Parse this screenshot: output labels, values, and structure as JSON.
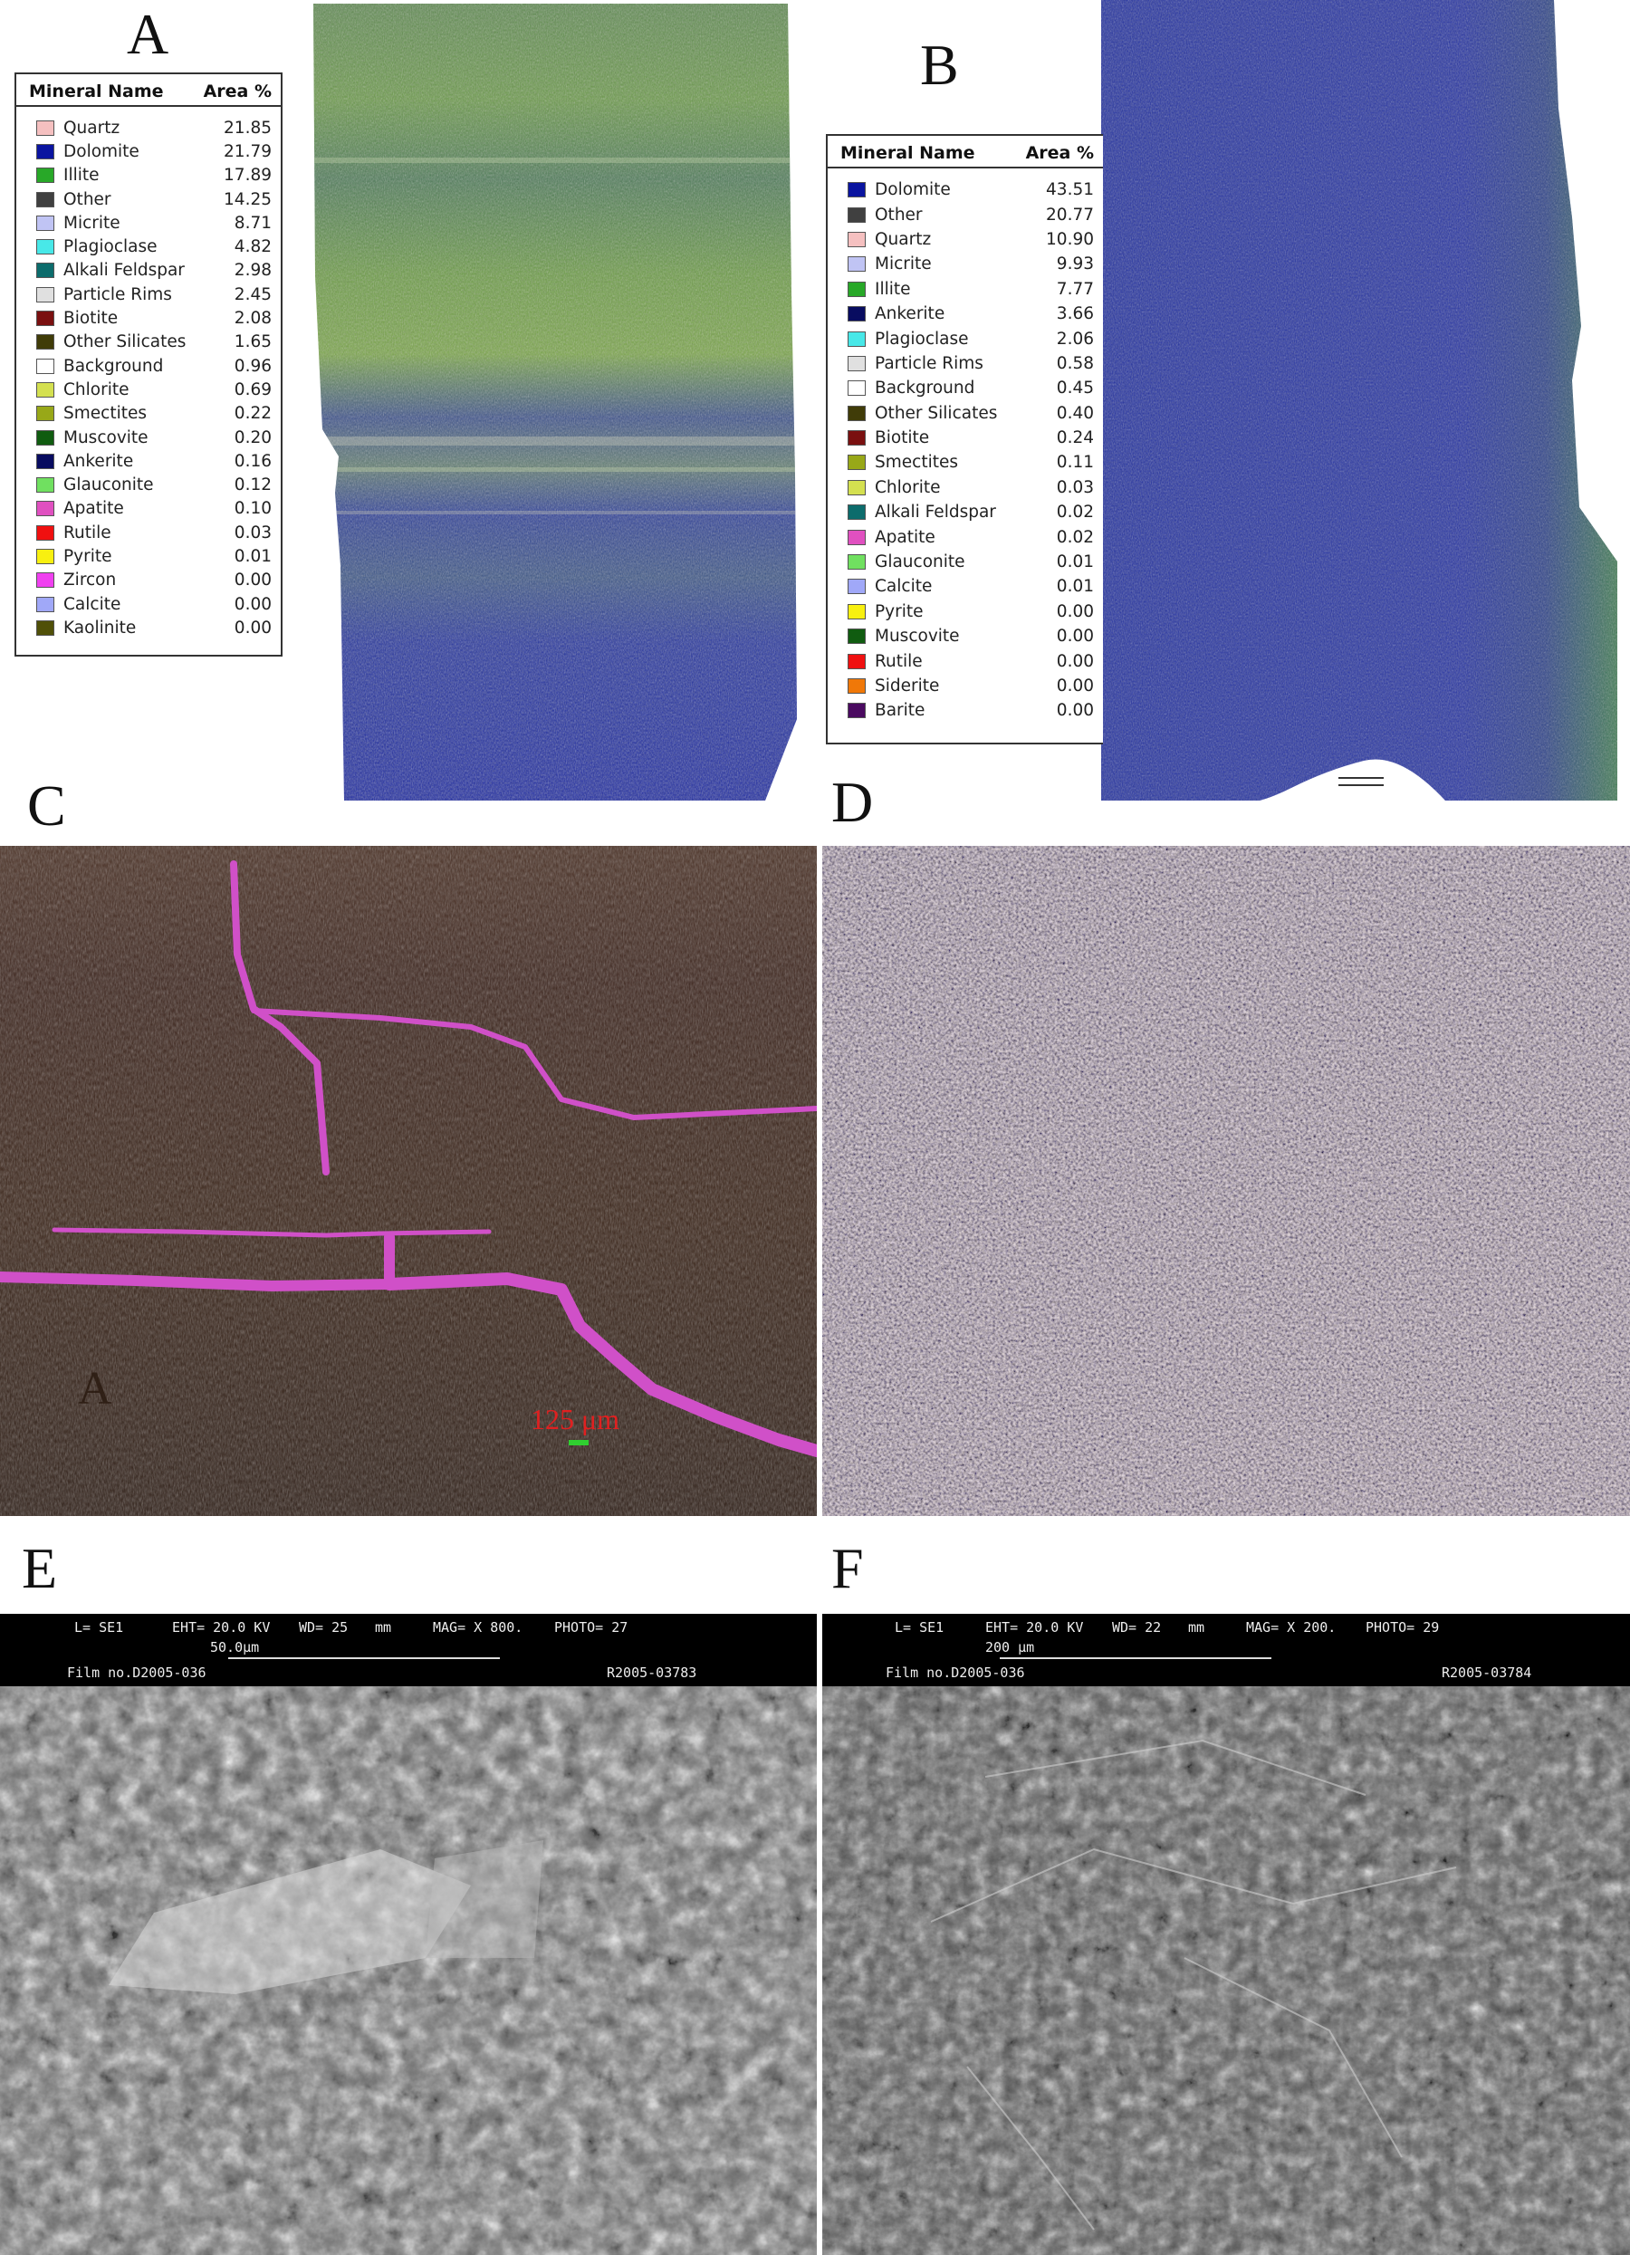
{
  "panels": {
    "A": {
      "label": "A",
      "legend": {
        "header_name": "Mineral Name",
        "header_area": "Area %",
        "rows": [
          {
            "name": "Quartz",
            "value": "21.85",
            "color": "#f5c0c0"
          },
          {
            "name": "Dolomite",
            "value": "21.79",
            "color": "#0a14a0"
          },
          {
            "name": "Illite",
            "value": "17.89",
            "color": "#28a828"
          },
          {
            "name": "Other",
            "value": "14.25",
            "color": "#404040"
          },
          {
            "name": "Micrite",
            "value": "8.71",
            "color": "#c0c4f4"
          },
          {
            "name": "Plagioclase",
            "value": "4.82",
            "color": "#48e8e8"
          },
          {
            "name": "Alkali Feldspar",
            "value": "2.98",
            "color": "#0c6c6c"
          },
          {
            "name": "Particle Rims",
            "value": "2.45",
            "color": "#e0e0e0"
          },
          {
            "name": "Biotite",
            "value": "2.08",
            "color": "#7a1010"
          },
          {
            "name": "Other Silicates",
            "value": "1.65",
            "color": "#403c08"
          },
          {
            "name": "Background",
            "value": "0.96",
            "color": "#ffffff"
          },
          {
            "name": "Chlorite",
            "value": "0.69",
            "color": "#d4e050"
          },
          {
            "name": "Smectites",
            "value": "0.22",
            "color": "#98a818"
          },
          {
            "name": "Muscovite",
            "value": "0.20",
            "color": "#105c10"
          },
          {
            "name": "Ankerite",
            "value": "0.16",
            "color": "#080c60"
          },
          {
            "name": "Glauconite",
            "value": "0.12",
            "color": "#70e060"
          },
          {
            "name": "Apatite",
            "value": "0.10",
            "color": "#e050c0"
          },
          {
            "name": "Rutile",
            "value": "0.03",
            "color": "#f01010"
          },
          {
            "name": "Pyrite",
            "value": "0.01",
            "color": "#f8f010"
          },
          {
            "name": "Zircon",
            "value": "0.00",
            "color": "#f040f0"
          },
          {
            "name": "Calcite",
            "value": "0.00",
            "color": "#a0a8f8"
          },
          {
            "name": "Kaolinite",
            "value": "0.00",
            "color": "#505008"
          }
        ]
      }
    },
    "B": {
      "label": "B",
      "legend": {
        "header_name": "Mineral Name",
        "header_area": "Area %",
        "rows": [
          {
            "name": "Dolomite",
            "value": "43.51",
            "color": "#0a14a0"
          },
          {
            "name": "Other",
            "value": "20.77",
            "color": "#404040"
          },
          {
            "name": "Quartz",
            "value": "10.90",
            "color": "#f5c0c0"
          },
          {
            "name": "Micrite",
            "value": "9.93",
            "color": "#c0c4f4"
          },
          {
            "name": "Illite",
            "value": "7.77",
            "color": "#28a828"
          },
          {
            "name": "Ankerite",
            "value": "3.66",
            "color": "#080c60"
          },
          {
            "name": "Plagioclase",
            "value": "2.06",
            "color": "#48e8e8"
          },
          {
            "name": "Particle Rims",
            "value": "0.58",
            "color": "#e0e0e0"
          },
          {
            "name": "Background",
            "value": "0.45",
            "color": "#ffffff"
          },
          {
            "name": "Other Silicates",
            "value": "0.40",
            "color": "#403c08"
          },
          {
            "name": "Biotite",
            "value": "0.24",
            "color": "#7a1010"
          },
          {
            "name": "Smectites",
            "value": "0.11",
            "color": "#98a818"
          },
          {
            "name": "Chlorite",
            "value": "0.03",
            "color": "#d4e050"
          },
          {
            "name": "Alkali Feldspar",
            "value": "0.02",
            "color": "#0c6c6c"
          },
          {
            "name": "Apatite",
            "value": "0.02",
            "color": "#e050c0"
          },
          {
            "name": "Glauconite",
            "value": "0.01",
            "color": "#70e060"
          },
          {
            "name": "Calcite",
            "value": "0.01",
            "color": "#a0a8f8"
          },
          {
            "name": "Pyrite",
            "value": "0.00",
            "color": "#f8f010"
          },
          {
            "name": "Muscovite",
            "value": "0.00",
            "color": "#105c10"
          },
          {
            "name": "Rutile",
            "value": "0.00",
            "color": "#f01010"
          },
          {
            "name": "Siderite",
            "value": "0.00",
            "color": "#f07808"
          },
          {
            "name": "Barite",
            "value": "0.00",
            "color": "#4a0a60"
          }
        ]
      }
    },
    "C": {
      "label": "C",
      "inner_label": "A",
      "scale_text": "125 μm",
      "vein_color": "#d050c8"
    },
    "D": {
      "label": "D"
    },
    "E": {
      "label": "E",
      "sem": {
        "line1_a": "L= SE1",
        "line1_b": "EHT= 20.0 KV",
        "line1_c": "WD= 25",
        "line1_d": "mm",
        "line1_e": "MAG= X 800.",
        "line1_f": "PHOTO= 27",
        "scale": "50.0μm",
        "film": "Film no.D2005-036",
        "ref": "R2005-03783"
      }
    },
    "F": {
      "label": "F",
      "sem": {
        "line1_a": "L= SE1",
        "line1_b": "EHT= 20.0 KV",
        "line1_c": "WD= 22",
        "line1_d": "mm",
        "line1_e": "MAG= X 200.",
        "line1_f": "PHOTO= 29",
        "scale": "200 μm",
        "film": "Film no.D2005-036",
        "ref": "R2005-03784"
      }
    }
  }
}
